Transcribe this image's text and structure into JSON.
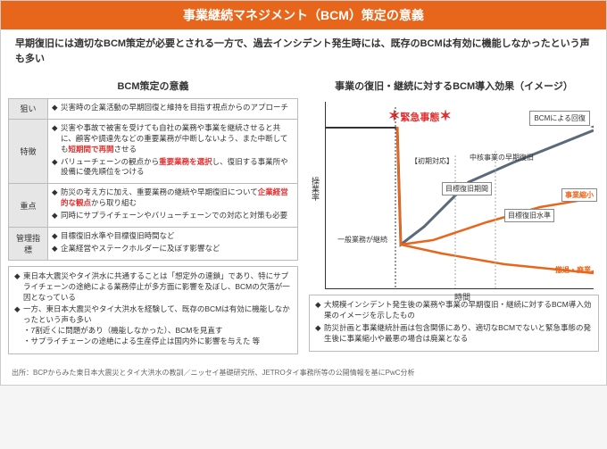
{
  "header": {
    "title": "事業継続マネジメント（BCM）策定の意義",
    "subtitle": "早期復旧には適切なBCM策定が必要とされる一方で、過去インシデント発生時には、既存のBCMは有効に機能しなかったという声も多い"
  },
  "left": {
    "heading": "BCM策定の意義",
    "rows": [
      {
        "label": "狙い",
        "items": [
          "災害時の企業活動の早期回復と維持を目指す視点からのアプローチ"
        ]
      },
      {
        "label": "特徴",
        "items": [
          "災害や事故で被害を受けても自社の業務や事業を継続させると共に、顧客や調達先などの重要業務が中断しないよう、また中断しても<span class='red'>短期間で再開</span>させる",
          "バリューチェーンの観点から<span class='red'>重要業務を選択</span>し、復旧する事業所や設備に優先順位をつける"
        ]
      },
      {
        "label": "重点",
        "items": [
          "防災の考え方に加え、重要業務の継続や早期復旧について<span class='red'>企業経営的な観点</span>から取り組む",
          "同時にサプライチェーンやバリューチェーンでの対応と対策も必要"
        ]
      },
      {
        "label": "管理指標",
        "items": [
          "目標復旧水準や目標復旧時間など",
          "企業経営やステークホルダーに及ぼす影響など"
        ]
      }
    ],
    "bullets": [
      "東日本大震災やタイ洪水に共通することは「想定外の連鎖」であり、特にサプライチェーンの途絶による業務停止が多方面に影響を及ぼし、BCMの欠落が一因となっている",
      "一方、東日本大震災やタイ大洪水を経験して、既存のBCMは有効に機能しなかったという声も多い<br>・7割近くに問題があり（機能しなかった）、BCMを見直す<br>・サプライチェーンの途絶による生産停止は国内外に影響を与えた 等"
    ]
  },
  "right": {
    "heading": "事業の復旧・継続に対するBCM導入効果（イメージ）",
    "chart": {
      "yaxis": "操業率",
      "xaxis": "時間",
      "burst": "緊急事態",
      "bcm_box": "BCMによる回復",
      "labels": {
        "initial": "【初期対応】",
        "core": "中核事業の早期復旧",
        "period": "目標復旧期間",
        "level": "目標復旧水準",
        "normal": "一般業務が継続",
        "shrink": "事業縮小",
        "withdraw": "撤退・廃業"
      },
      "colors": {
        "bcm": "#5a6a7a",
        "noBcm": "#e8661b",
        "red": "#e03030"
      }
    },
    "bullets": [
      "大規模インシデント発生後の業務や事業の早期復旧・継続に対するBCM導入効果のイメージを示したもの",
      "防災計画と事業継続計画は包含関係にあり、適切なBCMでないと緊急事態の発生後に事業縮小や最悪の場合は廃業となる"
    ]
  },
  "footer": "出所：BCPからみた東日本大震災とタイ大洪水の教訓／ニッセイ基礎研究所、JETROタイ事務所等の公開情報を基にPwC分析"
}
